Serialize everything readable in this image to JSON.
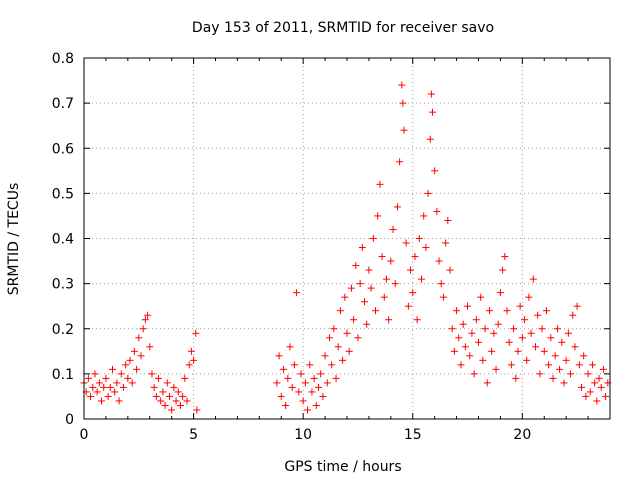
{
  "chart_data": {
    "type": "scatter",
    "title": "Day 153 of 2011, SRMTID for receiver savo",
    "xlabel": "GPS time / hours",
    "ylabel": "SRMTID / TECUs",
    "xlim": [
      0,
      24
    ],
    "ylim": [
      0,
      0.8
    ],
    "xticks": [
      0,
      5,
      10,
      15,
      20
    ],
    "xtick_labels": [
      "0",
      "5",
      "10",
      "15",
      "20"
    ],
    "yticks": [
      0,
      0.1,
      0.2,
      0.3,
      0.4,
      0.5,
      0.6,
      0.7,
      0.8
    ],
    "ytick_labels": [
      "0",
      "0.1",
      "0.2",
      "0.3",
      "0.4",
      "0.5",
      "0.6",
      "0.7",
      "0.8"
    ],
    "grid": true,
    "marker": "+",
    "color": "#ff0000",
    "series": [
      {
        "name": "SRMTID",
        "points": [
          [
            0.0,
            0.08
          ],
          [
            0.1,
            0.06
          ],
          [
            0.2,
            0.09
          ],
          [
            0.3,
            0.05
          ],
          [
            0.4,
            0.07
          ],
          [
            0.5,
            0.1
          ],
          [
            0.6,
            0.06
          ],
          [
            0.7,
            0.08
          ],
          [
            0.8,
            0.04
          ],
          [
            0.9,
            0.07
          ],
          [
            1.0,
            0.09
          ],
          [
            1.1,
            0.05
          ],
          [
            1.2,
            0.07
          ],
          [
            1.3,
            0.11
          ],
          [
            1.4,
            0.06
          ],
          [
            1.5,
            0.08
          ],
          [
            1.6,
            0.04
          ],
          [
            1.7,
            0.1
          ],
          [
            1.8,
            0.07
          ],
          [
            1.9,
            0.12
          ],
          [
            2.0,
            0.09
          ],
          [
            2.1,
            0.13
          ],
          [
            2.2,
            0.08
          ],
          [
            2.3,
            0.15
          ],
          [
            2.4,
            0.11
          ],
          [
            2.5,
            0.18
          ],
          [
            2.6,
            0.14
          ],
          [
            2.7,
            0.2
          ],
          [
            2.8,
            0.22
          ],
          [
            2.9,
            0.23
          ],
          [
            3.0,
            0.16
          ],
          [
            3.1,
            0.1
          ],
          [
            3.2,
            0.07
          ],
          [
            3.3,
            0.05
          ],
          [
            3.4,
            0.09
          ],
          [
            3.5,
            0.04
          ],
          [
            3.6,
            0.06
          ],
          [
            3.7,
            0.03
          ],
          [
            3.8,
            0.08
          ],
          [
            3.9,
            0.05
          ],
          [
            4.0,
            0.02
          ],
          [
            4.1,
            0.07
          ],
          [
            4.2,
            0.04
          ],
          [
            4.3,
            0.06
          ],
          [
            4.4,
            0.03
          ],
          [
            4.5,
            0.05
          ],
          [
            4.6,
            0.09
          ],
          [
            4.7,
            0.04
          ],
          [
            4.8,
            0.12
          ],
          [
            4.9,
            0.15
          ],
          [
            5.0,
            0.13
          ],
          [
            5.1,
            0.19
          ],
          [
            5.15,
            0.02
          ],
          [
            8.8,
            0.08
          ],
          [
            8.9,
            0.14
          ],
          [
            9.0,
            0.05
          ],
          [
            9.1,
            0.11
          ],
          [
            9.2,
            0.03
          ],
          [
            9.3,
            0.09
          ],
          [
            9.4,
            0.16
          ],
          [
            9.5,
            0.07
          ],
          [
            9.6,
            0.12
          ],
          [
            9.7,
            0.28
          ],
          [
            9.8,
            0.06
          ],
          [
            9.9,
            0.1
          ],
          [
            10.0,
            0.04
          ],
          [
            10.1,
            0.08
          ],
          [
            10.2,
            0.02
          ],
          [
            10.3,
            0.12
          ],
          [
            10.4,
            0.06
          ],
          [
            10.5,
            0.09
          ],
          [
            10.6,
            0.03
          ],
          [
            10.7,
            0.07
          ],
          [
            10.8,
            0.1
          ],
          [
            10.9,
            0.05
          ],
          [
            11.0,
            0.14
          ],
          [
            11.1,
            0.08
          ],
          [
            11.2,
            0.18
          ],
          [
            11.3,
            0.12
          ],
          [
            11.4,
            0.2
          ],
          [
            11.5,
            0.09
          ],
          [
            11.6,
            0.16
          ],
          [
            11.7,
            0.24
          ],
          [
            11.8,
            0.13
          ],
          [
            11.9,
            0.27
          ],
          [
            12.0,
            0.19
          ],
          [
            12.1,
            0.15
          ],
          [
            12.2,
            0.29
          ],
          [
            12.3,
            0.22
          ],
          [
            12.4,
            0.34
          ],
          [
            12.5,
            0.18
          ],
          [
            12.6,
            0.3
          ],
          [
            12.7,
            0.38
          ],
          [
            12.8,
            0.26
          ],
          [
            12.9,
            0.21
          ],
          [
            13.0,
            0.33
          ],
          [
            13.1,
            0.29
          ],
          [
            13.2,
            0.4
          ],
          [
            13.3,
            0.24
          ],
          [
            13.4,
            0.45
          ],
          [
            13.5,
            0.52
          ],
          [
            13.6,
            0.36
          ],
          [
            13.7,
            0.27
          ],
          [
            13.8,
            0.31
          ],
          [
            13.9,
            0.22
          ],
          [
            14.0,
            0.35
          ],
          [
            14.1,
            0.42
          ],
          [
            14.2,
            0.3
          ],
          [
            14.3,
            0.47
          ],
          [
            14.4,
            0.57
          ],
          [
            14.5,
            0.74
          ],
          [
            14.55,
            0.7
          ],
          [
            14.6,
            0.64
          ],
          [
            14.7,
            0.39
          ],
          [
            14.8,
            0.25
          ],
          [
            14.9,
            0.33
          ],
          [
            15.0,
            0.28
          ],
          [
            15.1,
            0.36
          ],
          [
            15.2,
            0.22
          ],
          [
            15.3,
            0.4
          ],
          [
            15.4,
            0.31
          ],
          [
            15.5,
            0.45
          ],
          [
            15.6,
            0.38
          ],
          [
            15.7,
            0.5
          ],
          [
            15.8,
            0.62
          ],
          [
            15.85,
            0.72
          ],
          [
            15.9,
            0.68
          ],
          [
            16.0,
            0.55
          ],
          [
            16.1,
            0.46
          ],
          [
            16.2,
            0.35
          ],
          [
            16.3,
            0.3
          ],
          [
            16.4,
            0.27
          ],
          [
            16.5,
            0.39
          ],
          [
            16.6,
            0.44
          ],
          [
            16.7,
            0.33
          ],
          [
            16.8,
            0.2
          ],
          [
            16.9,
            0.15
          ],
          [
            17.0,
            0.24
          ],
          [
            17.1,
            0.18
          ],
          [
            17.2,
            0.12
          ],
          [
            17.3,
            0.21
          ],
          [
            17.4,
            0.16
          ],
          [
            17.5,
            0.25
          ],
          [
            17.6,
            0.14
          ],
          [
            17.7,
            0.19
          ],
          [
            17.8,
            0.1
          ],
          [
            17.9,
            0.22
          ],
          [
            18.0,
            0.17
          ],
          [
            18.1,
            0.27
          ],
          [
            18.2,
            0.13
          ],
          [
            18.3,
            0.2
          ],
          [
            18.4,
            0.08
          ],
          [
            18.5,
            0.24
          ],
          [
            18.6,
            0.15
          ],
          [
            18.7,
            0.19
          ],
          [
            18.8,
            0.11
          ],
          [
            18.9,
            0.21
          ],
          [
            19.0,
            0.28
          ],
          [
            19.1,
            0.33
          ],
          [
            19.2,
            0.36
          ],
          [
            19.3,
            0.24
          ],
          [
            19.4,
            0.17
          ],
          [
            19.5,
            0.12
          ],
          [
            19.6,
            0.2
          ],
          [
            19.7,
            0.09
          ],
          [
            19.8,
            0.15
          ],
          [
            19.9,
            0.25
          ],
          [
            20.0,
            0.18
          ],
          [
            20.1,
            0.22
          ],
          [
            20.2,
            0.13
          ],
          [
            20.3,
            0.27
          ],
          [
            20.4,
            0.19
          ],
          [
            20.5,
            0.31
          ],
          [
            20.6,
            0.16
          ],
          [
            20.7,
            0.23
          ],
          [
            20.8,
            0.1
          ],
          [
            20.9,
            0.2
          ],
          [
            21.0,
            0.15
          ],
          [
            21.1,
            0.24
          ],
          [
            21.2,
            0.12
          ],
          [
            21.3,
            0.18
          ],
          [
            21.4,
            0.09
          ],
          [
            21.5,
            0.14
          ],
          [
            21.6,
            0.2
          ],
          [
            21.7,
            0.11
          ],
          [
            21.8,
            0.17
          ],
          [
            21.9,
            0.08
          ],
          [
            22.0,
            0.13
          ],
          [
            22.1,
            0.19
          ],
          [
            22.2,
            0.1
          ],
          [
            22.3,
            0.23
          ],
          [
            22.4,
            0.16
          ],
          [
            22.5,
            0.25
          ],
          [
            22.6,
            0.12
          ],
          [
            22.7,
            0.07
          ],
          [
            22.8,
            0.14
          ],
          [
            22.9,
            0.05
          ],
          [
            23.0,
            0.1
          ],
          [
            23.1,
            0.06
          ],
          [
            23.2,
            0.12
          ],
          [
            23.3,
            0.08
          ],
          [
            23.4,
            0.04
          ],
          [
            23.5,
            0.09
          ],
          [
            23.6,
            0.07
          ],
          [
            23.7,
            0.11
          ],
          [
            23.8,
            0.05
          ],
          [
            23.9,
            0.08
          ]
        ]
      }
    ]
  }
}
